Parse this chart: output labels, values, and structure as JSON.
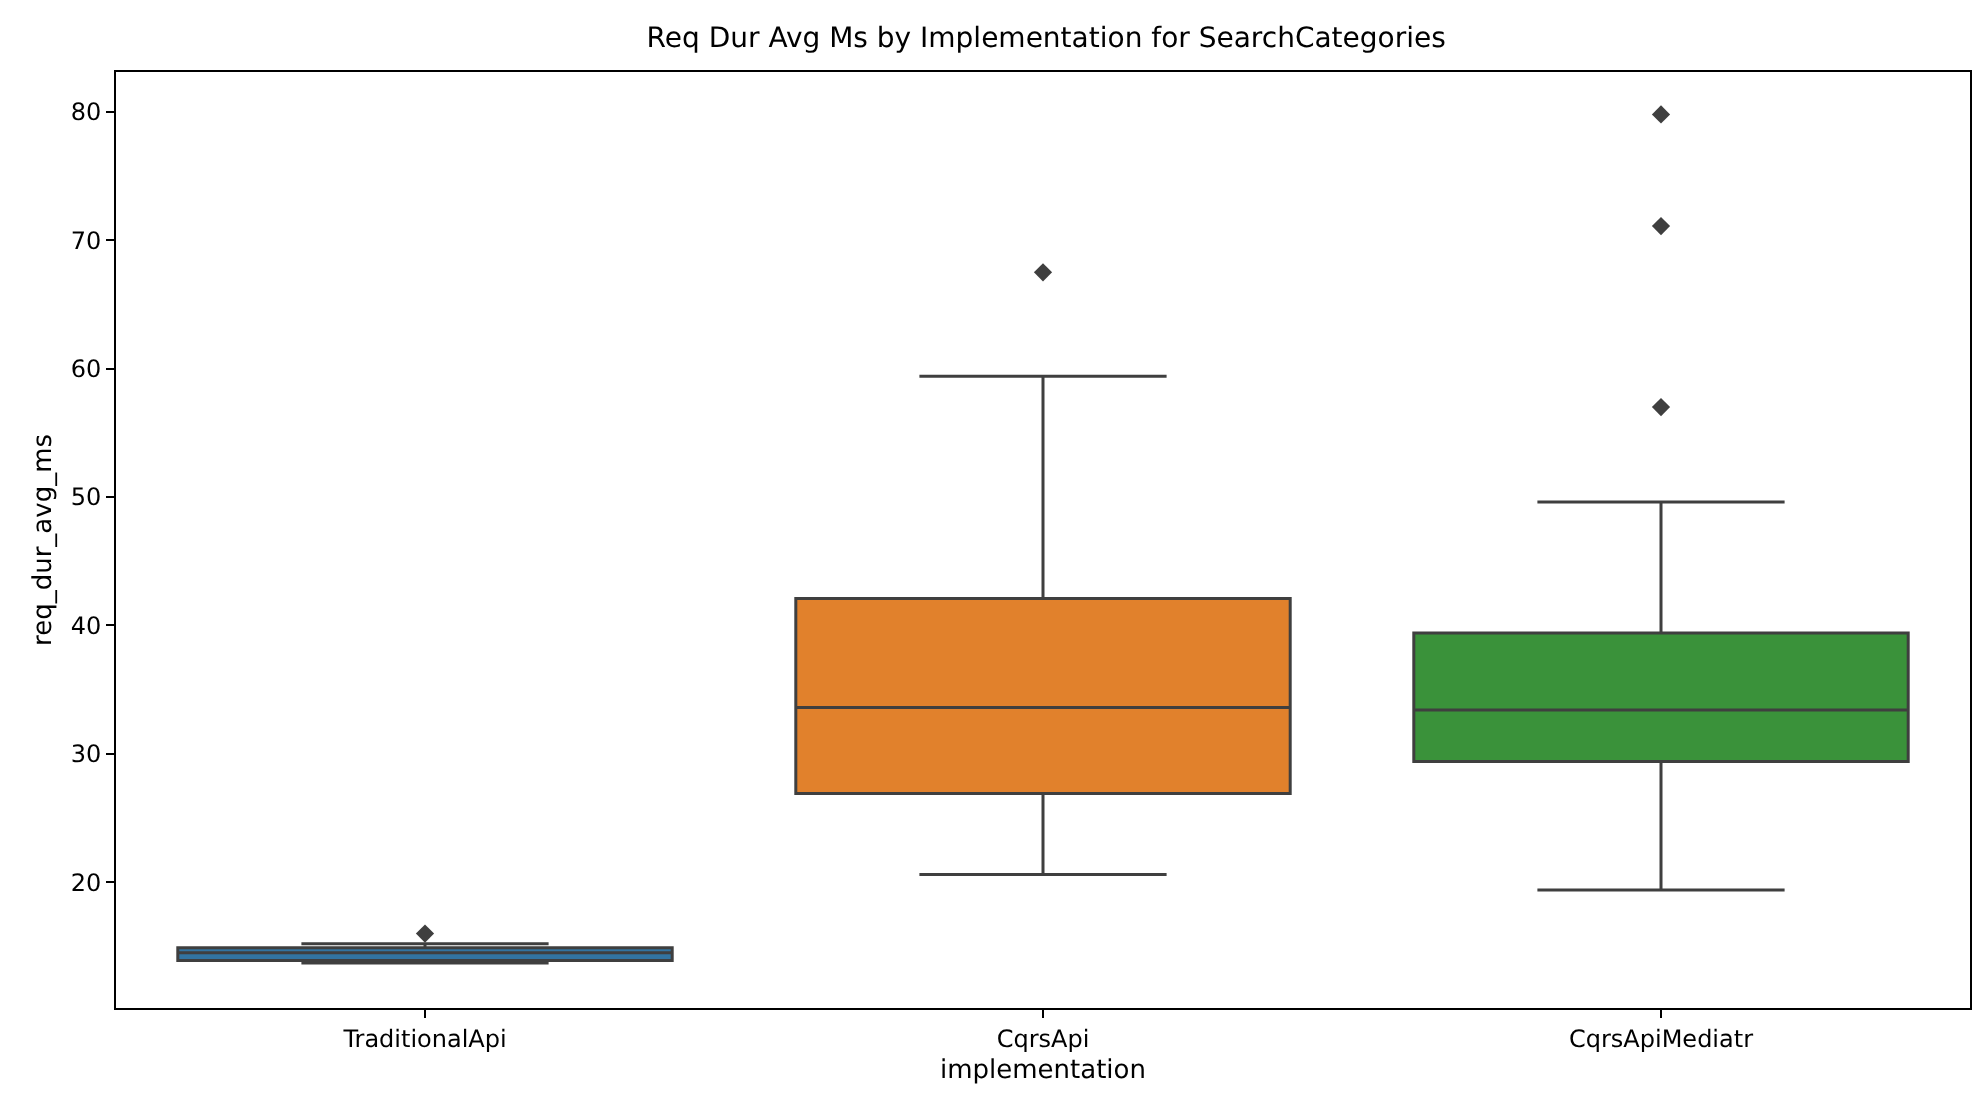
{
  "chart_data": {
    "type": "box",
    "title": "Req Dur Avg Ms by Implementation for SearchCategories",
    "xlabel": "implementation",
    "ylabel": "req_dur_avg_ms",
    "categories": [
      "TraditionalApi",
      "CqrsApi",
      "CqrsApiMediatr"
    ],
    "colors": [
      "#3274a1",
      "#e1812c",
      "#3a923a"
    ],
    "boxes": [
      {
        "low": 13.7,
        "q1": 13.9,
        "median": 14.5,
        "q3": 14.9,
        "high": 15.2,
        "outliers": [
          16.0
        ]
      },
      {
        "low": 20.6,
        "q1": 26.9,
        "median": 33.6,
        "q3": 42.1,
        "high": 59.4,
        "outliers": [
          67.5
        ]
      },
      {
        "low": 19.4,
        "q1": 29.4,
        "median": 33.4,
        "q3": 39.4,
        "high": 49.6,
        "outliers": [
          57.0,
          71.1,
          79.8
        ]
      }
    ],
    "ylim": [
      10.2,
      83.1
    ],
    "yticks": [
      20,
      30,
      40,
      50,
      60,
      70,
      80
    ],
    "grid": false,
    "marker": "diamond"
  }
}
